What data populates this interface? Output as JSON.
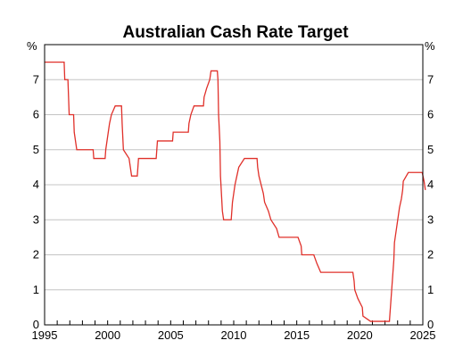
{
  "chart_data": {
    "type": "line",
    "title": "Australian Cash Rate Target",
    "xlabel": "",
    "ylabel": "",
    "y_unit_left": "%",
    "y_unit_right": "%",
    "xlim": [
      1995,
      2025
    ],
    "ylim": [
      0,
      8
    ],
    "x_ticks": [
      1995,
      2000,
      2005,
      2010,
      2015,
      2020,
      2025
    ],
    "y_ticks": [
      0,
      1,
      2,
      3,
      4,
      5,
      6,
      7
    ],
    "grid": true,
    "line_style": "step",
    "series": [
      {
        "color": "#e0302a",
        "points": [
          [
            1995.0,
            7.5
          ],
          [
            1996.55,
            7.5
          ],
          [
            1996.6,
            7.0
          ],
          [
            1996.85,
            7.0
          ],
          [
            1996.9,
            6.5
          ],
          [
            1996.95,
            6.0
          ],
          [
            1997.3,
            6.0
          ],
          [
            1997.35,
            5.5
          ],
          [
            1997.55,
            5.0
          ],
          [
            1998.85,
            5.0
          ],
          [
            1998.9,
            4.75
          ],
          [
            1999.8,
            4.75
          ],
          [
            1999.85,
            5.0
          ],
          [
            2000.05,
            5.5
          ],
          [
            2000.15,
            5.75
          ],
          [
            2000.3,
            6.0
          ],
          [
            2000.6,
            6.25
          ],
          [
            2001.1,
            6.25
          ],
          [
            2001.15,
            5.75
          ],
          [
            2001.25,
            5.0
          ],
          [
            2001.7,
            4.75
          ],
          [
            2001.8,
            4.5
          ],
          [
            2001.9,
            4.25
          ],
          [
            2002.35,
            4.25
          ],
          [
            2002.45,
            4.75
          ],
          [
            2003.85,
            4.75
          ],
          [
            2003.95,
            5.25
          ],
          [
            2005.15,
            5.25
          ],
          [
            2005.2,
            5.5
          ],
          [
            2006.4,
            5.5
          ],
          [
            2006.45,
            5.75
          ],
          [
            2006.6,
            6.0
          ],
          [
            2006.85,
            6.25
          ],
          [
            2007.6,
            6.25
          ],
          [
            2007.65,
            6.5
          ],
          [
            2007.85,
            6.75
          ],
          [
            2008.1,
            7.0
          ],
          [
            2008.2,
            7.25
          ],
          [
            2008.7,
            7.25
          ],
          [
            2008.75,
            7.0
          ],
          [
            2008.8,
            6.0
          ],
          [
            2008.9,
            5.25
          ],
          [
            2008.95,
            4.25
          ],
          [
            2009.1,
            3.25
          ],
          [
            2009.2,
            3.0
          ],
          [
            2009.8,
            3.0
          ],
          [
            2009.85,
            3.25
          ],
          [
            2009.9,
            3.5
          ],
          [
            2010.0,
            3.75
          ],
          [
            2010.1,
            4.0
          ],
          [
            2010.25,
            4.25
          ],
          [
            2010.4,
            4.5
          ],
          [
            2010.85,
            4.75
          ],
          [
            2011.85,
            4.75
          ],
          [
            2011.9,
            4.5
          ],
          [
            2012.0,
            4.25
          ],
          [
            2012.35,
            3.75
          ],
          [
            2012.45,
            3.5
          ],
          [
            2012.75,
            3.25
          ],
          [
            2012.95,
            3.0
          ],
          [
            2013.4,
            2.75
          ],
          [
            2013.6,
            2.5
          ],
          [
            2015.1,
            2.5
          ],
          [
            2015.35,
            2.25
          ],
          [
            2015.4,
            2.0
          ],
          [
            2016.35,
            2.0
          ],
          [
            2016.6,
            1.75
          ],
          [
            2016.9,
            1.5
          ],
          [
            2019.45,
            1.5
          ],
          [
            2019.55,
            1.25
          ],
          [
            2019.6,
            1.0
          ],
          [
            2019.85,
            0.75
          ],
          [
            2020.2,
            0.5
          ],
          [
            2020.25,
            0.25
          ],
          [
            2020.85,
            0.1
          ],
          [
            2022.35,
            0.1
          ],
          [
            2022.4,
            0.35
          ],
          [
            2022.5,
            0.85
          ],
          [
            2022.6,
            1.35
          ],
          [
            2022.7,
            1.85
          ],
          [
            2022.75,
            2.35
          ],
          [
            2022.85,
            2.6
          ],
          [
            2022.95,
            2.85
          ],
          [
            2023.05,
            3.1
          ],
          [
            2023.15,
            3.35
          ],
          [
            2023.3,
            3.6
          ],
          [
            2023.4,
            3.85
          ],
          [
            2023.45,
            4.1
          ],
          [
            2023.85,
            4.35
          ],
          [
            2024.95,
            4.35
          ],
          [
            2025.1,
            4.1
          ],
          [
            2025.2,
            3.85
          ]
        ]
      }
    ]
  }
}
